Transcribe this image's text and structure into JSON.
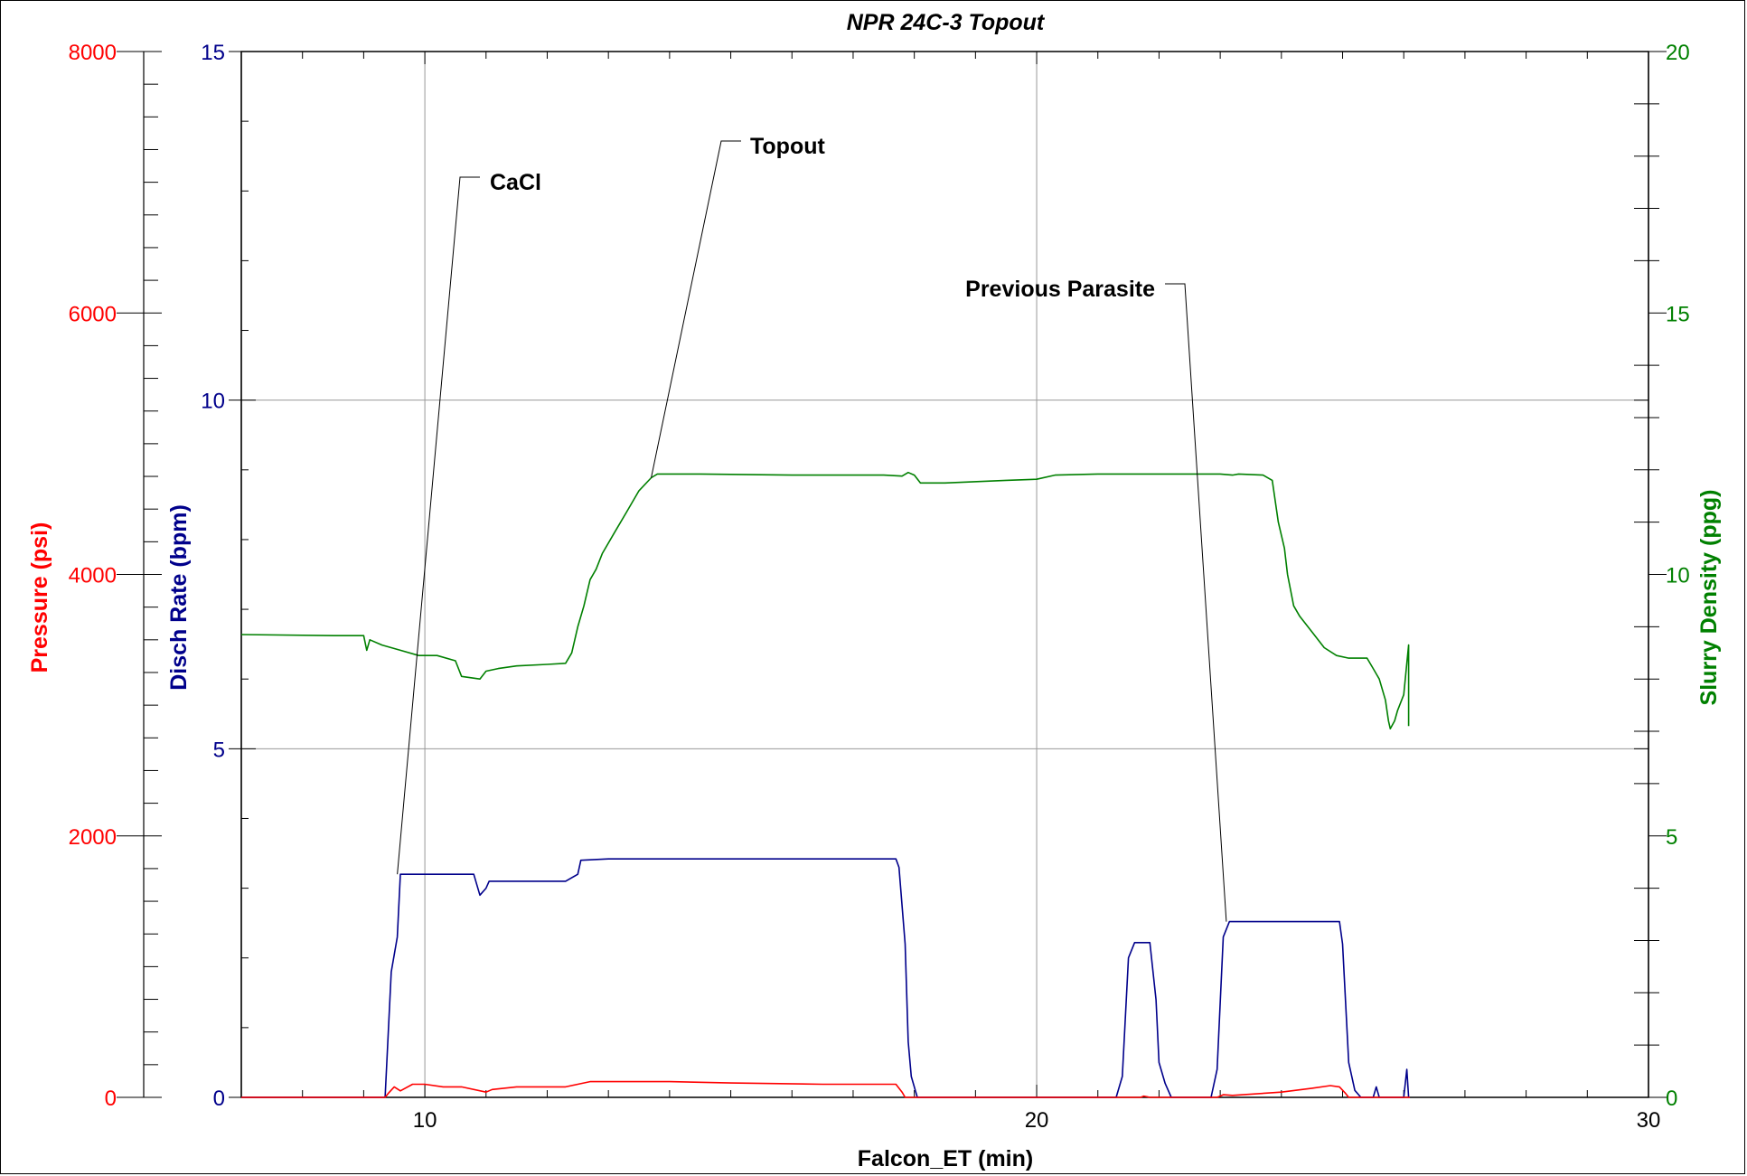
{
  "chart_data": {
    "type": "line",
    "title": "NPR 24C-3 Topout",
    "xlabel": "Falcon_ET (min)",
    "xlim": [
      7,
      30
    ],
    "x_ticks": [
      10,
      20,
      30
    ],
    "axes": {
      "pressure": {
        "label": "Pressure (psi)",
        "color": "#ff0000",
        "lim": [
          0,
          8000
        ],
        "ticks": [
          0,
          2000,
          4000,
          6000,
          8000
        ]
      },
      "rate": {
        "label": "Disch Rate (bpm)",
        "color": "#00008b",
        "lim": [
          0,
          15
        ],
        "ticks": [
          0,
          5,
          10,
          15
        ]
      },
      "density": {
        "label": "Slurry Density (ppg)",
        "color": "#008000",
        "lim": [
          0,
          20
        ],
        "ticks": [
          0,
          5,
          10,
          15,
          20
        ]
      }
    },
    "grid": true,
    "series": [
      {
        "axis": "rate",
        "color": "#00008b",
        "points": [
          [
            7,
            0
          ],
          [
            9.35,
            0
          ],
          [
            9.45,
            1.8
          ],
          [
            9.55,
            2.3
          ],
          [
            9.6,
            3.2
          ],
          [
            9.8,
            3.2
          ],
          [
            10.4,
            3.2
          ],
          [
            10.8,
            3.2
          ],
          [
            10.9,
            2.9
          ],
          [
            11.0,
            3.0
          ],
          [
            11.05,
            3.1
          ],
          [
            11.5,
            3.1
          ],
          [
            12.3,
            3.1
          ],
          [
            12.5,
            3.2
          ],
          [
            12.55,
            3.4
          ],
          [
            13.0,
            3.42
          ],
          [
            16.0,
            3.42
          ],
          [
            17.7,
            3.42
          ],
          [
            17.75,
            3.3
          ],
          [
            17.85,
            2.2
          ],
          [
            17.9,
            0.8
          ],
          [
            17.95,
            0.3
          ],
          [
            18.05,
            0
          ],
          [
            20.0,
            0
          ],
          [
            21.3,
            0
          ],
          [
            21.4,
            0.3
          ],
          [
            21.5,
            2.0
          ],
          [
            21.6,
            2.22
          ],
          [
            21.85,
            2.22
          ],
          [
            21.95,
            1.4
          ],
          [
            22.0,
            0.5
          ],
          [
            22.1,
            0.2
          ],
          [
            22.2,
            0
          ],
          [
            22.85,
            0
          ],
          [
            22.95,
            0.4
          ],
          [
            23.05,
            2.3
          ],
          [
            23.15,
            2.52
          ],
          [
            24.5,
            2.52
          ],
          [
            24.95,
            2.52
          ],
          [
            25.0,
            2.2
          ],
          [
            25.1,
            0.5
          ],
          [
            25.2,
            0.1
          ],
          [
            25.3,
            0
          ],
          [
            25.5,
            0
          ],
          [
            25.55,
            0.15
          ],
          [
            25.6,
            0
          ],
          [
            26.0,
            0
          ],
          [
            26.05,
            0.4
          ],
          [
            26.08,
            0
          ]
        ]
      },
      {
        "axis": "density",
        "color": "#008000",
        "points": [
          [
            7,
            8.85
          ],
          [
            8.5,
            8.83
          ],
          [
            9.0,
            8.83
          ],
          [
            9.05,
            8.55
          ],
          [
            9.1,
            8.75
          ],
          [
            9.3,
            8.65
          ],
          [
            9.6,
            8.55
          ],
          [
            9.9,
            8.45
          ],
          [
            10.2,
            8.45
          ],
          [
            10.5,
            8.35
          ],
          [
            10.6,
            8.05
          ],
          [
            10.9,
            8.0
          ],
          [
            11.0,
            8.15
          ],
          [
            11.2,
            8.2
          ],
          [
            11.5,
            8.25
          ],
          [
            12.0,
            8.28
          ],
          [
            12.3,
            8.3
          ],
          [
            12.4,
            8.5
          ],
          [
            12.5,
            9.0
          ],
          [
            12.6,
            9.4
          ],
          [
            12.7,
            9.9
          ],
          [
            12.8,
            10.1
          ],
          [
            12.9,
            10.4
          ],
          [
            13.1,
            10.8
          ],
          [
            13.3,
            11.2
          ],
          [
            13.5,
            11.6
          ],
          [
            13.7,
            11.85
          ],
          [
            13.8,
            11.92
          ],
          [
            14.5,
            11.92
          ],
          [
            16.0,
            11.9
          ],
          [
            17.5,
            11.9
          ],
          [
            17.8,
            11.88
          ],
          [
            17.9,
            11.95
          ],
          [
            18.0,
            11.9
          ],
          [
            18.1,
            11.75
          ],
          [
            18.5,
            11.75
          ],
          [
            19.5,
            11.8
          ],
          [
            20.0,
            11.82
          ],
          [
            20.3,
            11.9
          ],
          [
            21.0,
            11.92
          ],
          [
            22.0,
            11.92
          ],
          [
            23.0,
            11.92
          ],
          [
            23.2,
            11.9
          ],
          [
            23.3,
            11.92
          ],
          [
            23.7,
            11.9
          ],
          [
            23.85,
            11.8
          ],
          [
            23.95,
            11.0
          ],
          [
            24.05,
            10.5
          ],
          [
            24.1,
            10.0
          ],
          [
            24.2,
            9.4
          ],
          [
            24.3,
            9.2
          ],
          [
            24.5,
            8.9
          ],
          [
            24.7,
            8.6
          ],
          [
            24.9,
            8.45
          ],
          [
            25.1,
            8.4
          ],
          [
            25.3,
            8.4
          ],
          [
            25.4,
            8.4
          ],
          [
            25.5,
            8.2
          ],
          [
            25.6,
            8.0
          ],
          [
            25.7,
            7.6
          ],
          [
            25.75,
            7.2
          ],
          [
            25.78,
            7.05
          ],
          [
            25.85,
            7.2
          ],
          [
            25.9,
            7.4
          ],
          [
            26.0,
            7.7
          ],
          [
            26.05,
            8.3
          ],
          [
            26.08,
            8.65
          ],
          [
            26.08,
            7.1
          ]
        ]
      },
      {
        "axis": "pressure",
        "color": "#ff0000",
        "points": [
          [
            7,
            0
          ],
          [
            9.35,
            0
          ],
          [
            9.4,
            30
          ],
          [
            9.5,
            80
          ],
          [
            9.6,
            50
          ],
          [
            9.8,
            100
          ],
          [
            10.0,
            100
          ],
          [
            10.3,
            80
          ],
          [
            10.6,
            80
          ],
          [
            11.0,
            40
          ],
          [
            11.1,
            60
          ],
          [
            11.5,
            80
          ],
          [
            12.3,
            80
          ],
          [
            12.5,
            100
          ],
          [
            12.7,
            120
          ],
          [
            14.0,
            120
          ],
          [
            15.0,
            110
          ],
          [
            16.5,
            100
          ],
          [
            17.7,
            100
          ],
          [
            17.8,
            40
          ],
          [
            17.85,
            0
          ],
          [
            20.0,
            0
          ],
          [
            21.7,
            0
          ],
          [
            21.75,
            10
          ],
          [
            21.85,
            0
          ],
          [
            22.95,
            0
          ],
          [
            23.05,
            20
          ],
          [
            23.2,
            15
          ],
          [
            24.0,
            40
          ],
          [
            24.5,
            70
          ],
          [
            24.8,
            90
          ],
          [
            24.95,
            80
          ],
          [
            25.05,
            30
          ],
          [
            25.1,
            0
          ],
          [
            26.1,
            0
          ]
        ]
      }
    ],
    "annotations": [
      {
        "text": "CaCl",
        "x": 9.55,
        "y_rate": 3.2
      },
      {
        "text": "Topout",
        "x": 13.7,
        "y_density": 11.85
      },
      {
        "text": "Previous Parasite",
        "x": 23.1,
        "y_rate": 2.52
      }
    ]
  }
}
